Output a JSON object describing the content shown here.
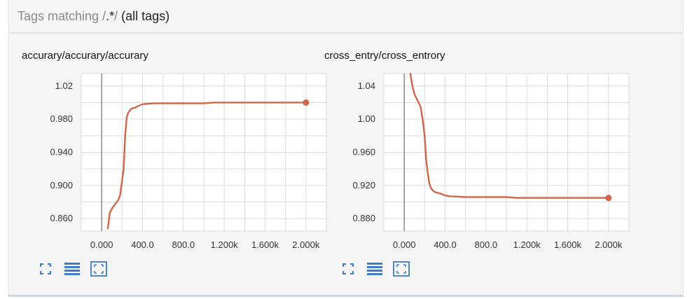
{
  "header": {
    "prefix": "Tags matching",
    "slash_open": "/",
    "regex": ".*",
    "slash_close": "/",
    "suffix": "(all tags)"
  },
  "colors": {
    "series": "#d0654a",
    "icon": "#3d7cc9",
    "grid": "#dcdcdc"
  },
  "charts": [
    {
      "title": "accurary/accurary/accurary",
      "icons": [
        "expand-icon",
        "list-icon",
        "fit-domain-icon"
      ]
    },
    {
      "title": "cross_entry/cross_entrory",
      "icons": [
        "expand-icon",
        "list-icon",
        "fit-domain-icon"
      ]
    }
  ],
  "chart_data": [
    {
      "type": "line",
      "title": "accurary/accurary/accurary",
      "xlabel": "",
      "ylabel": "",
      "x_tick_labels": [
        "0.000",
        "400.0",
        "800.0",
        "1.200k",
        "1.600k",
        "2.000k"
      ],
      "y_tick_labels": [
        "0.860",
        "0.900",
        "0.940",
        "0.980",
        "1.02"
      ],
      "xlim": [
        -200,
        2200
      ],
      "ylim": [
        0.845,
        1.035
      ],
      "grid": true,
      "series": [
        {
          "x": [
            60,
            80,
            100,
            130,
            160,
            180,
            200,
            215,
            230,
            245,
            260,
            280,
            300,
            330,
            360,
            400,
            450,
            500,
            600,
            800,
            1000,
            1100,
            1300,
            1600,
            2000
          ],
          "y": [
            0.848,
            0.867,
            0.872,
            0.877,
            0.882,
            0.888,
            0.906,
            0.92,
            0.96,
            0.982,
            0.988,
            0.991,
            0.993,
            0.994,
            0.996,
            0.998,
            0.9985,
            0.999,
            0.999,
            0.999,
            0.999,
            1.0,
            1.0,
            1.0,
            1.0
          ]
        }
      ]
    },
    {
      "type": "line",
      "title": "cross_entry/cross_entrory",
      "xlabel": "",
      "ylabel": "",
      "x_tick_labels": [
        "0.000",
        "400.0",
        "800.0",
        "1.200k",
        "1.600k",
        "2.000k"
      ],
      "y_tick_labels": [
        "0.880",
        "0.920",
        "0.960",
        "1.00",
        "1.04"
      ],
      "xlim": [
        -200,
        2200
      ],
      "ylim": [
        0.865,
        1.055
      ],
      "grid": true,
      "series": [
        {
          "x": [
            60,
            80,
            100,
            120,
            140,
            160,
            180,
            200,
            215,
            230,
            245,
            260,
            280,
            300,
            330,
            360,
            400,
            450,
            600,
            800,
            1000,
            1100,
            1300,
            1600,
            2000
          ],
          "y": [
            1.055,
            1.04,
            1.03,
            1.025,
            1.02,
            1.015,
            1.0,
            0.98,
            0.95,
            0.935,
            0.923,
            0.917,
            0.914,
            0.912,
            0.911,
            0.91,
            0.908,
            0.907,
            0.906,
            0.906,
            0.906,
            0.905,
            0.905,
            0.905,
            0.905
          ]
        }
      ]
    }
  ]
}
